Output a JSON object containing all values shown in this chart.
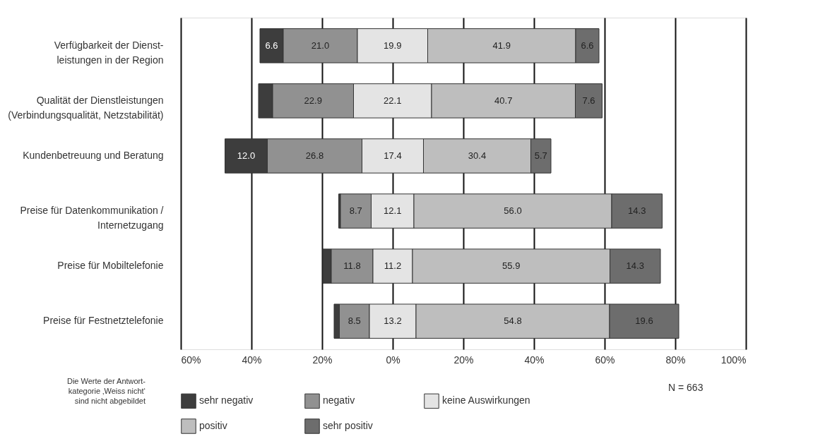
{
  "chart_data": {
    "type": "bar",
    "orientation": "horizontal",
    "categories": [
      "Verfügbarkeit der Dienst-\nleistungen in der Region",
      "Qualität der Dienstleistungen\n(Verbindungsqualität, Netzstabilität)",
      "Kundenbetreuung und Beratung",
      "Preise für Datenkommunikation /\nInternetzugang",
      "Preise für Mobiltelefonie",
      "Preise für Festnetztelefonie"
    ],
    "series": [
      {
        "name": "sehr negativ",
        "color": "#3d3d3d",
        "base": [
          -37.6,
          -38.0,
          -47.5,
          -15.3,
          -19.8,
          -16.6
        ],
        "values": [
          6.6,
          4.0,
          12.0,
          0.5,
          2.4,
          1.5
        ],
        "value_labels": [
          "6.6",
          null,
          "12.0",
          null,
          null,
          null
        ]
      },
      {
        "name": "negativ",
        "color": "#919191",
        "base": [
          -31.0,
          -34.0,
          -35.5,
          -14.8,
          -17.4,
          -15.1
        ],
        "values": [
          21.0,
          22.9,
          26.8,
          8.7,
          11.8,
          8.5
        ],
        "value_labels": [
          "21.0",
          "22.9",
          "26.8",
          "8.7",
          "11.8",
          "8.5"
        ]
      },
      {
        "name": "keine Auswirkungen",
        "color": "#e4e4e4",
        "base": [
          -10.0,
          -11.1,
          -8.7,
          -6.1,
          -5.6,
          -6.6
        ],
        "values": [
          19.9,
          22.1,
          17.4,
          12.1,
          11.2,
          13.2
        ],
        "value_labels": [
          "19.9",
          "22.1",
          "17.4",
          "12.1",
          "11.2",
          "13.2"
        ]
      },
      {
        "name": "positiv",
        "color": "#bebebe",
        "base": [
          9.9,
          11.0,
          8.7,
          6.0,
          5.6,
          6.6
        ],
        "values": [
          41.9,
          40.7,
          30.4,
          56.0,
          55.9,
          54.8
        ],
        "value_labels": [
          "41.9",
          "40.7",
          "30.4",
          "56.0",
          "55.9",
          "54.8"
        ]
      },
      {
        "name": "sehr positiv",
        "color": "#6d6d6d",
        "base": [
          51.8,
          51.7,
          39.1,
          62.0,
          61.5,
          61.4
        ],
        "values": [
          6.6,
          7.6,
          5.7,
          14.3,
          14.3,
          19.6
        ],
        "value_labels": [
          "6.6",
          "7.6",
          "5.7",
          "14.3",
          "14.3",
          "19.6"
        ]
      }
    ],
    "xlim": [
      -60,
      100
    ],
    "xticks": [
      {
        "value": -60,
        "label": "60%"
      },
      {
        "value": -40,
        "label": "40%"
      },
      {
        "value": -20,
        "label": "20%"
      },
      {
        "value": 0,
        "label": "0%"
      },
      {
        "value": 20,
        "label": "20%"
      },
      {
        "value": 40,
        "label": "40%"
      },
      {
        "value": 60,
        "label": "60%"
      },
      {
        "value": 80,
        "label": "80%"
      },
      {
        "value": 100,
        "label": "100%"
      }
    ],
    "grid": "x",
    "legend": "bottom",
    "annotations": [
      "Die Werte der Antwort-\nkategorie ‚Weiss nicht‘\nsind nicht abgebildet",
      "N = 663"
    ]
  }
}
